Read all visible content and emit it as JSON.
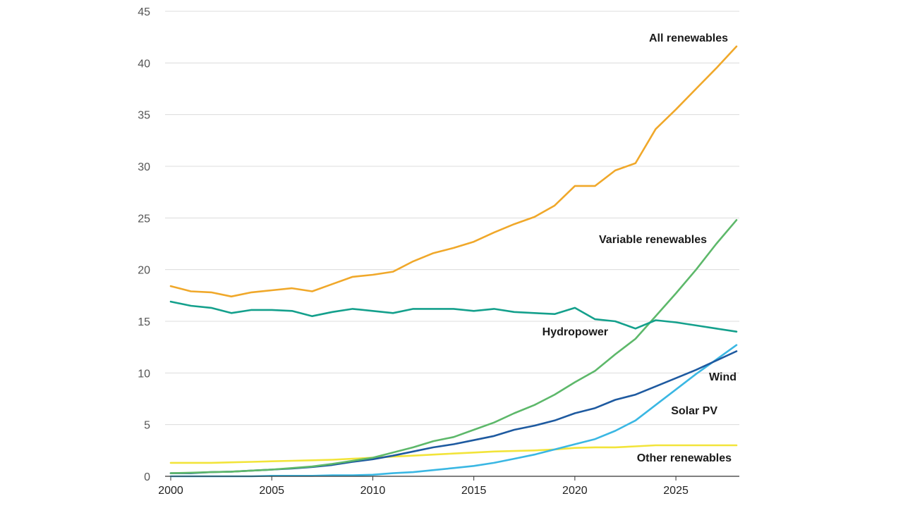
{
  "chart_data": {
    "type": "line",
    "title": "",
    "xlabel": "",
    "ylabel": "",
    "ylim": [
      0,
      45
    ],
    "xlim": [
      2000,
      2028
    ],
    "yticks": [
      "0",
      "5",
      "10",
      "15",
      "20",
      "25",
      "30",
      "35",
      "40",
      "45"
    ],
    "xticks": [
      "2000",
      "2005",
      "2010",
      "2015",
      "2020",
      "2025"
    ],
    "grid": "horizontal",
    "x": [
      2000,
      2001,
      2002,
      2003,
      2004,
      2005,
      2006,
      2007,
      2008,
      2009,
      2010,
      2011,
      2012,
      2013,
      2014,
      2015,
      2016,
      2017,
      2018,
      2019,
      2020,
      2021,
      2022,
      2023,
      2024,
      2025,
      2026,
      2027,
      2028
    ],
    "series": [
      {
        "name": "All renewables",
        "color": "#f0a82a",
        "values": [
          18.4,
          17.9,
          17.8,
          17.4,
          17.8,
          18.0,
          18.2,
          17.9,
          18.6,
          19.3,
          19.5,
          19.8,
          20.8,
          21.6,
          22.1,
          22.7,
          23.6,
          24.4,
          25.1,
          26.2,
          28.1,
          28.1,
          29.6,
          30.3,
          33.6,
          35.5,
          37.5,
          39.5,
          41.6
        ]
      },
      {
        "name": "Variable renewables",
        "color": "#5db86a",
        "values": [
          0.3,
          0.35,
          0.4,
          0.45,
          0.55,
          0.65,
          0.8,
          0.95,
          1.2,
          1.5,
          1.8,
          2.3,
          2.8,
          3.4,
          3.8,
          4.5,
          5.2,
          6.1,
          6.9,
          7.9,
          9.1,
          10.2,
          11.8,
          13.3,
          15.5,
          17.7,
          20.0,
          22.5,
          24.8
        ]
      },
      {
        "name": "Hydropower",
        "color": "#14a08c",
        "values": [
          16.9,
          16.5,
          16.3,
          15.8,
          16.1,
          16.1,
          16.0,
          15.5,
          15.9,
          16.2,
          16.0,
          15.8,
          16.2,
          16.2,
          16.2,
          16.0,
          16.2,
          15.9,
          15.8,
          15.7,
          16.3,
          15.2,
          15.0,
          14.3,
          15.1,
          14.9,
          14.6,
          14.3,
          14.0
        ]
      },
      {
        "name": "Wind",
        "color": "#1e5aa0",
        "values": [
          0.3,
          0.3,
          0.4,
          0.45,
          0.55,
          0.65,
          0.75,
          0.9,
          1.1,
          1.4,
          1.65,
          2.0,
          2.4,
          2.8,
          3.1,
          3.5,
          3.9,
          4.5,
          4.9,
          5.4,
          6.1,
          6.6,
          7.4,
          7.9,
          8.7,
          9.5,
          10.3,
          11.2,
          12.1
        ]
      },
      {
        "name": "Solar PV",
        "color": "#3ab7e3",
        "values": [
          0.0,
          0.0,
          0.0,
          0.0,
          0.0,
          0.05,
          0.05,
          0.05,
          0.1,
          0.1,
          0.15,
          0.3,
          0.4,
          0.6,
          0.8,
          1.0,
          1.3,
          1.7,
          2.1,
          2.6,
          3.1,
          3.6,
          4.4,
          5.4,
          6.9,
          8.4,
          9.9,
          11.3,
          12.7
        ]
      },
      {
        "name": "Other renewables",
        "color": "#f2e43a",
        "values": [
          1.3,
          1.3,
          1.3,
          1.35,
          1.4,
          1.45,
          1.5,
          1.55,
          1.6,
          1.7,
          1.8,
          1.9,
          2.0,
          2.1,
          2.2,
          2.3,
          2.4,
          2.45,
          2.5,
          2.6,
          2.75,
          2.8,
          2.8,
          2.9,
          3.0,
          3.0,
          3.0,
          3.0,
          3.0
        ]
      }
    ],
    "labels": [
      "All renewables",
      "Variable renewables",
      "Hydropower",
      "Wind",
      "Solar PV",
      "Other renewables"
    ]
  }
}
